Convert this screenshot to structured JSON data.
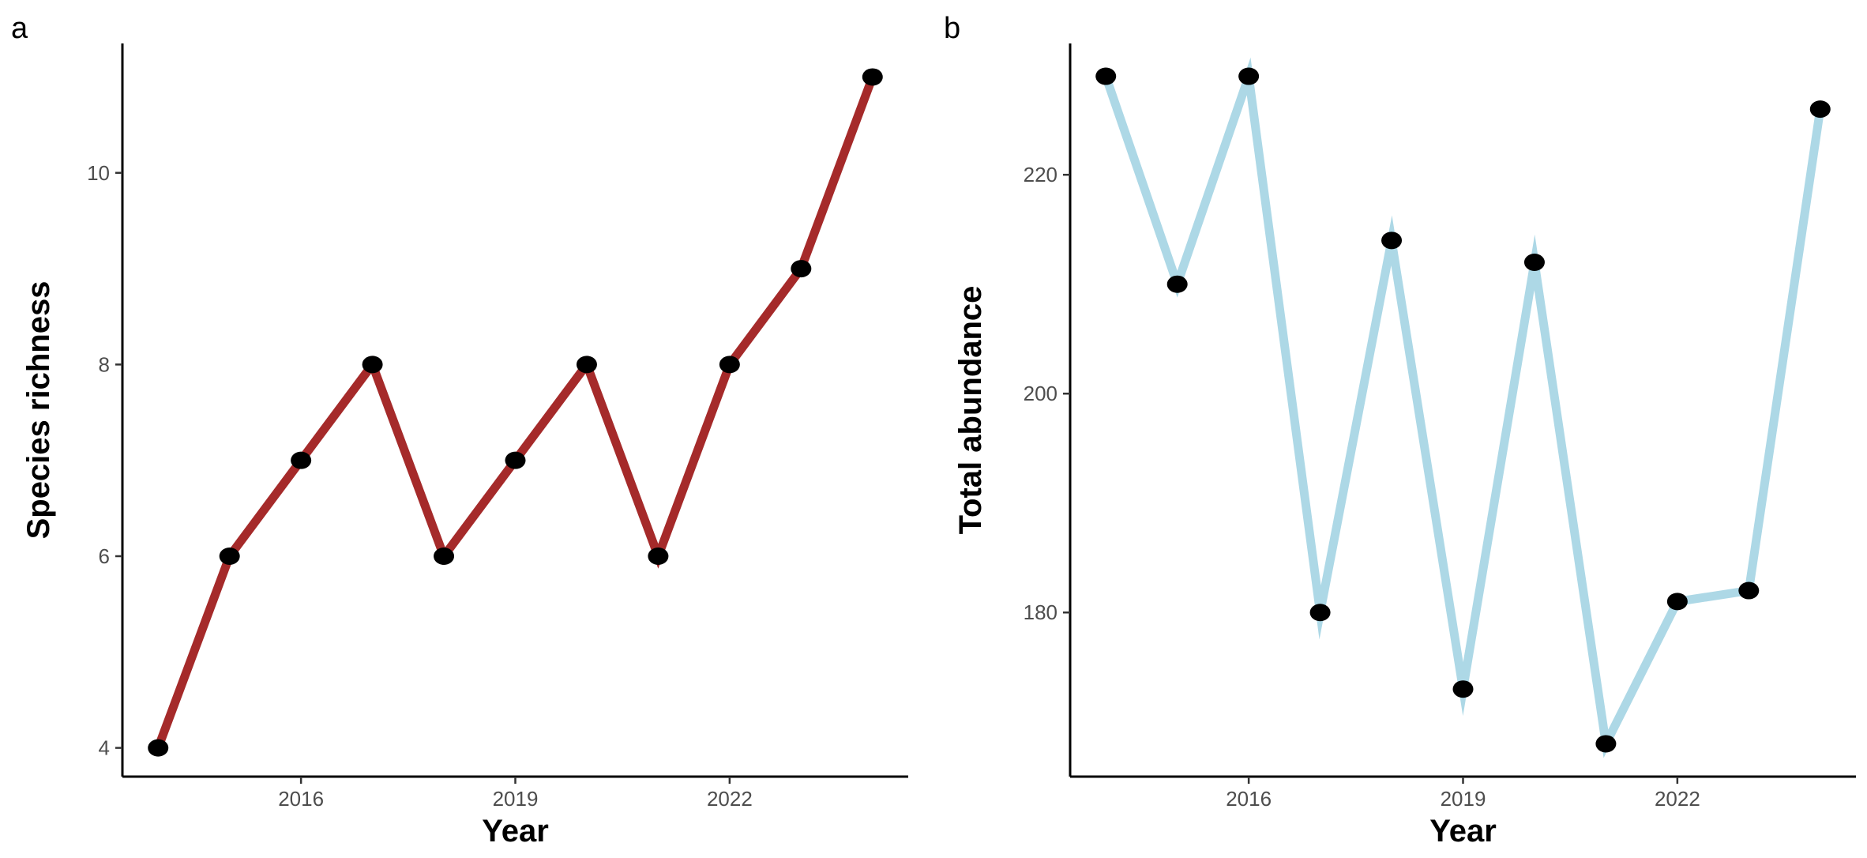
{
  "chart_data": [
    {
      "type": "line",
      "panel_label": "a",
      "title": "",
      "xlabel": "Year",
      "ylabel": "Species richness",
      "x": [
        2014,
        2015,
        2016,
        2017,
        2018,
        2019,
        2020,
        2021,
        2022,
        2023,
        2024
      ],
      "series": [
        {
          "values": [
            4,
            6,
            7,
            8,
            6,
            7,
            8,
            6,
            8,
            9,
            11
          ]
        }
      ],
      "xticks": [
        "2016",
        "2019",
        "2022"
      ],
      "yticks": [
        "4",
        "6",
        "8",
        "10"
      ],
      "xlim": [
        2013.5,
        2024.5
      ],
      "ylim": [
        3.7,
        11.35
      ],
      "line_color": "#a52a2a",
      "point_color": "#000000",
      "grid": false,
      "legend": "none"
    },
    {
      "type": "line",
      "panel_label": "b",
      "title": "",
      "xlabel": "Year",
      "ylabel": "Total abundance",
      "x": [
        2014,
        2015,
        2016,
        2017,
        2018,
        2019,
        2020,
        2021,
        2022,
        2023,
        2024
      ],
      "series": [
        {
          "values": [
            229,
            210,
            229,
            180,
            214,
            173,
            212,
            168,
            181,
            182,
            226
          ]
        }
      ],
      "xticks": [
        "2016",
        "2019",
        "2022"
      ],
      "yticks": [
        "180",
        "200",
        "220"
      ],
      "xlim": [
        2013.5,
        2024.5
      ],
      "ylim": [
        165,
        232
      ],
      "line_color": "#add8e6",
      "point_color": "#000000",
      "grid": false,
      "legend": "none"
    }
  ]
}
